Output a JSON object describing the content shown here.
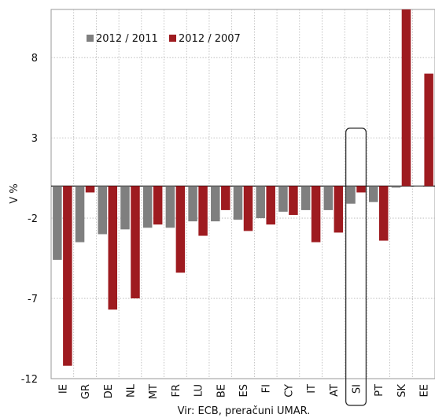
{
  "chart_data": {
    "type": "bar",
    "ylabel": "V %",
    "source": "Vir: ECB, preračuni UMAR.",
    "yticks": [
      -12,
      -7,
      -2,
      3,
      8
    ],
    "ylim": [
      -12,
      11
    ],
    "legend_position": "top-left",
    "grid": true,
    "categories": [
      "IE",
      "GR",
      "DE",
      "NL",
      "MT",
      "FR",
      "LU",
      "BE",
      "ES",
      "FI",
      "CY",
      "IT",
      "AT",
      "SI",
      "PT",
      "SK",
      "EE"
    ],
    "highlight_category": "SI",
    "series": [
      {
        "name": "2012 / 2011",
        "color": "#7f7f7f",
        "values": [
          -4.6,
          -3.5,
          -3.0,
          -2.7,
          -2.6,
          -2.6,
          -2.2,
          -2.2,
          -2.1,
          -2.0,
          -1.6,
          -1.5,
          -1.5,
          -1.1,
          -1.0,
          -0.1,
          0.0
        ]
      },
      {
        "name": "2012 / 2007",
        "color": "#9e1b20",
        "values": [
          -11.2,
          -0.4,
          -7.7,
          -7.0,
          -2.4,
          -5.4,
          -3.1,
          -1.5,
          -2.8,
          -2.4,
          -1.8,
          -3.5,
          -2.9,
          -0.4,
          -3.4,
          11.0,
          7.0
        ]
      }
    ]
  }
}
